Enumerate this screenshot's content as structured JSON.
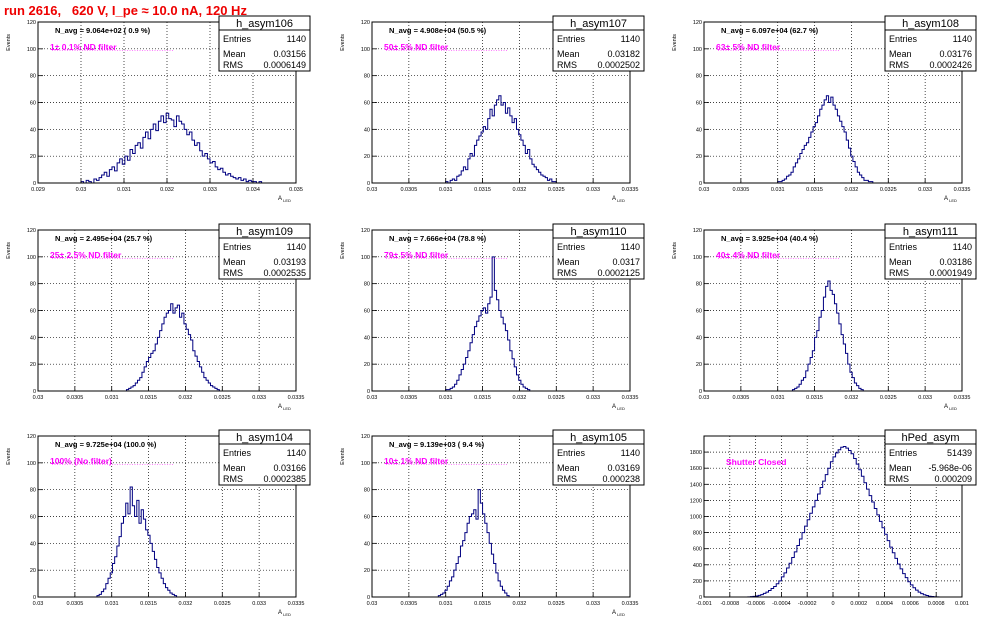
{
  "run_title": "run 2616,   620 V, I_pe ≈ 10.0 nA, 120 Hz",
  "stat_labels": {
    "entries": "Entries",
    "mean": "Mean",
    "rms": "RMS"
  },
  "colors": {
    "hist": "#000080",
    "annotation": "#ff00ff",
    "title": "#ee0000",
    "grid": "#000000"
  },
  "chart_data": [
    {
      "type": "bar",
      "name": "h_asym106",
      "ylabel": "Events",
      "xlabel": "A_LED",
      "xlim": [
        0.029,
        0.035
      ],
      "ylim": [
        0,
        120
      ],
      "xticks": [
        0.029,
        0.03,
        0.031,
        0.032,
        0.033,
        0.034,
        0.035
      ],
      "xtick_labels": [
        "0.029",
        "0.03",
        "0.031",
        "0.032",
        "0.033",
        "0.034",
        "0.035"
      ],
      "yticks": [
        0,
        20,
        40,
        60,
        80,
        100,
        120
      ],
      "navg": "N_avg = 9.064e+02 ( 0.9 %)",
      "filter": "1± 0.1% ND filter",
      "stats": {
        "entries": "1140",
        "mean": "0.03156",
        "rms": "0.0006149"
      },
      "grid": true,
      "hist": {
        "start": 0.03,
        "width": 6e-05,
        "counts": [
          1,
          0,
          2,
          1,
          0,
          3,
          2,
          4,
          6,
          8,
          5,
          10,
          12,
          9,
          15,
          18,
          14,
          20,
          17,
          25,
          22,
          28,
          30,
          26,
          34,
          38,
          33,
          40,
          44,
          39,
          46,
          50,
          45,
          52,
          48,
          47,
          42,
          50,
          46,
          44,
          40,
          36,
          38,
          32,
          28,
          30,
          24,
          20,
          22,
          18,
          15,
          16,
          12,
          10,
          11,
          8,
          6,
          7,
          5,
          4,
          3,
          4,
          2,
          3,
          1,
          2,
          1,
          1,
          0,
          1
        ]
      }
    },
    {
      "type": "bar",
      "name": "h_asym107",
      "ylabel": "Events",
      "xlabel": "A_LED",
      "xlim": [
        0.03,
        0.0335
      ],
      "ylim": [
        0,
        120
      ],
      "xticks": [
        0.03,
        0.0305,
        0.031,
        0.0315,
        0.032,
        0.0325,
        0.033,
        0.0335
      ],
      "xtick_labels": [
        "0.03",
        "0.0305",
        "0.031",
        "0.0315",
        "0.032",
        "0.0325",
        "0.033",
        "0.0335"
      ],
      "yticks": [
        0,
        20,
        40,
        60,
        80,
        100,
        120
      ],
      "navg": "N_avg = 4.908e+04 (50.5 %)",
      "filter": "50± 5% ND filter",
      "stats": {
        "entries": "1140",
        "mean": "0.03182",
        "rms": "0.0002502"
      },
      "grid": true,
      "hist": {
        "start": 0.031,
        "width": 3e-05,
        "counts": [
          1,
          0,
          2,
          3,
          2,
          5,
          6,
          9,
          12,
          10,
          18,
          22,
          20,
          28,
          32,
          35,
          38,
          42,
          40,
          48,
          55,
          50,
          58,
          62,
          65,
          58,
          60,
          52,
          56,
          50,
          45,
          48,
          40,
          36,
          32,
          28,
          22,
          25,
          18,
          14,
          12,
          10,
          8,
          6,
          5,
          4,
          2,
          3,
          1,
          1
        ]
      }
    },
    {
      "type": "bar",
      "name": "h_asym108",
      "ylabel": "Events",
      "xlabel": "A_LED",
      "xlim": [
        0.03,
        0.0335
      ],
      "ylim": [
        0,
        120
      ],
      "xticks": [
        0.03,
        0.0305,
        0.031,
        0.0315,
        0.032,
        0.0325,
        0.033,
        0.0335
      ],
      "xtick_labels": [
        "0.03",
        "0.0305",
        "0.031",
        "0.0315",
        "0.032",
        "0.0325",
        "0.033",
        "0.0335"
      ],
      "yticks": [
        0,
        20,
        40,
        60,
        80,
        100,
        120
      ],
      "navg": "N_avg = 6.097e+04 (62.7 %)",
      "filter": "63± 5% ND filter",
      "stats": {
        "entries": "1140",
        "mean": "0.03176",
        "rms": "0.0002426"
      },
      "grid": true,
      "hist": {
        "start": 0.031,
        "width": 3e-05,
        "counts": [
          1,
          1,
          2,
          3,
          5,
          6,
          8,
          12,
          15,
          18,
          22,
          25,
          28,
          30,
          34,
          38,
          42,
          45,
          50,
          55,
          58,
          62,
          65,
          60,
          64,
          58,
          55,
          50,
          46,
          42,
          38,
          32,
          26,
          20,
          16,
          12,
          8,
          6,
          4,
          2,
          2,
          1,
          1
        ]
      }
    },
    {
      "type": "bar",
      "name": "h_asym109",
      "ylabel": "Events",
      "xlabel": "A_LED",
      "xlim": [
        0.03,
        0.0335
      ],
      "ylim": [
        0,
        120
      ],
      "xticks": [
        0.03,
        0.0305,
        0.031,
        0.0315,
        0.032,
        0.0325,
        0.033,
        0.0335
      ],
      "xtick_labels": [
        "0.03",
        "0.0305",
        "0.031",
        "0.0315",
        "0.032",
        "0.0325",
        "0.033",
        "0.0335"
      ],
      "yticks": [
        0,
        20,
        40,
        60,
        80,
        100,
        120
      ],
      "navg": "N_avg = 2.495e+04 (25.7 %)",
      "filter": "25± 2.5% ND filter",
      "stats": {
        "entries": "1140",
        "mean": "0.03193",
        "rms": "0.0002535"
      },
      "grid": true,
      "hist": {
        "start": 0.0312,
        "width": 3e-05,
        "counts": [
          1,
          2,
          3,
          4,
          6,
          8,
          10,
          14,
          18,
          22,
          25,
          28,
          30,
          35,
          40,
          45,
          50,
          55,
          58,
          60,
          65,
          58,
          62,
          64,
          55,
          58,
          50,
          46,
          42,
          38,
          30,
          26,
          22,
          18,
          14,
          10,
          8,
          6,
          4,
          3,
          2,
          1
        ]
      }
    },
    {
      "type": "bar",
      "name": "h_asym110",
      "ylabel": "Events",
      "xlabel": "A_LED",
      "xlim": [
        0.03,
        0.0335
      ],
      "ylim": [
        0,
        120
      ],
      "xticks": [
        0.03,
        0.0305,
        0.031,
        0.0315,
        0.032,
        0.0325,
        0.033,
        0.0335
      ],
      "xtick_labels": [
        "0.03",
        "0.0305",
        "0.031",
        "0.0315",
        "0.032",
        "0.0325",
        "0.033",
        "0.0335"
      ],
      "yticks": [
        0,
        20,
        40,
        60,
        80,
        100,
        120
      ],
      "navg": "N_avg = 7.666e+04 (78.8 %)",
      "filter": "79± 5% ND filter",
      "stats": {
        "entries": "1140",
        "mean": "0.0317",
        "rms": "0.0002125"
      },
      "grid": true,
      "hist": {
        "start": 0.031,
        "width": 3e-05,
        "counts": [
          1,
          1,
          2,
          3,
          5,
          8,
          12,
          16,
          20,
          25,
          30,
          36,
          42,
          48,
          52,
          56,
          60,
          62,
          58,
          65,
          70,
          100,
          75,
          68,
          60,
          55,
          50,
          45,
          38,
          30,
          24,
          18,
          12,
          8,
          5,
          3,
          2,
          1
        ]
      }
    },
    {
      "type": "bar",
      "name": "h_asym111",
      "ylabel": "Events",
      "xlabel": "A_LED",
      "xlim": [
        0.03,
        0.0335
      ],
      "ylim": [
        0,
        120
      ],
      "xticks": [
        0.03,
        0.0305,
        0.031,
        0.0315,
        0.032,
        0.0325,
        0.033,
        0.0335
      ],
      "xtick_labels": [
        "0.03",
        "0.0305",
        "0.031",
        "0.0315",
        "0.032",
        "0.0325",
        "0.033",
        "0.0335"
      ],
      "yticks": [
        0,
        20,
        40,
        60,
        80,
        100,
        120
      ],
      "navg": "N_avg = 3.925e+04 (40.4 %)",
      "filter": "40± 4% ND filter",
      "stats": {
        "entries": "1140",
        "mean": "0.03186",
        "rms": "0.0001949"
      },
      "grid": true,
      "hist": {
        "start": 0.0312,
        "width": 3e-05,
        "counts": [
          1,
          2,
          3,
          5,
          8,
          10,
          15,
          20,
          25,
          30,
          40,
          45,
          55,
          60,
          70,
          78,
          82,
          75,
          72,
          65,
          58,
          50,
          42,
          35,
          28,
          20,
          14,
          10,
          6,
          4,
          2,
          1
        ]
      }
    },
    {
      "type": "bar",
      "name": "h_asym104",
      "ylabel": "Events",
      "xlabel": "A_LED",
      "xlim": [
        0.03,
        0.0335
      ],
      "ylim": [
        0,
        120
      ],
      "xticks": [
        0.03,
        0.0305,
        0.031,
        0.0315,
        0.032,
        0.0325,
        0.033,
        0.0335
      ],
      "xtick_labels": [
        "0.03",
        "0.0305",
        "0.031",
        "0.0315",
        "0.032",
        "0.0325",
        "0.033",
        "0.0335"
      ],
      "yticks": [
        0,
        20,
        40,
        60,
        80,
        100,
        120
      ],
      "navg": "N_avg = 9.725e+04 (100.0 %)",
      "filter": "100% (No filter)",
      "stats": {
        "entries": "1140",
        "mean": "0.03166",
        "rms": "0.0002385"
      },
      "grid": true,
      "hist": {
        "start": 0.0308,
        "width": 3e-05,
        "counts": [
          1,
          2,
          4,
          6,
          10,
          14,
          18,
          25,
          30,
          38,
          45,
          55,
          60,
          70,
          62,
          82,
          68,
          60,
          72,
          55,
          65,
          58,
          50,
          46,
          40,
          34,
          28,
          22,
          18,
          14,
          10,
          7,
          5,
          3,
          2,
          1
        ]
      }
    },
    {
      "type": "bar",
      "name": "h_asym105",
      "ylabel": "Events",
      "xlabel": "A_LED",
      "xlim": [
        0.03,
        0.0335
      ],
      "ylim": [
        0,
        120
      ],
      "xticks": [
        0.03,
        0.0305,
        0.031,
        0.0315,
        0.032,
        0.0325,
        0.033,
        0.0335
      ],
      "xtick_labels": [
        "0.03",
        "0.0305",
        "0.031",
        "0.0315",
        "0.032",
        "0.0325",
        "0.033",
        "0.0335"
      ],
      "yticks": [
        0,
        20,
        40,
        60,
        80,
        100,
        120
      ],
      "navg": "N_avg = 9.139e+03 ( 9.4 %)",
      "filter": "10± 1% ND filter",
      "stats": {
        "entries": "1140",
        "mean": "0.03169",
        "rms": "0.000238"
      },
      "grid": true,
      "hist": {
        "start": 0.0309,
        "width": 3e-05,
        "counts": [
          1,
          2,
          3,
          5,
          8,
          12,
          15,
          20,
          25,
          30,
          38,
          42,
          48,
          55,
          60,
          62,
          65,
          58,
          80,
          70,
          62,
          55,
          48,
          40,
          32,
          25,
          18,
          12,
          8,
          5,
          3,
          1
        ]
      }
    },
    {
      "type": "bar",
      "name": "hPed_asym",
      "ylabel": "",
      "xlabel": "",
      "xlim": [
        -0.001,
        0.001
      ],
      "ylim": [
        0,
        2000
      ],
      "xticks": [
        -0.001,
        -0.0008,
        -0.0006,
        -0.0004,
        -0.0002,
        0,
        0.0002,
        0.0004,
        0.0006,
        0.0008,
        0.001
      ],
      "xtick_labels": [
        "-0.001",
        "-0.0008",
        "-0.0006",
        "-0.0004",
        "-0.0002",
        "0",
        "0.0002",
        "0.0004",
        "0.0006",
        "0.0008",
        "0.001"
      ],
      "yticks": [
        0,
        200,
        400,
        600,
        800,
        1000,
        1200,
        1400,
        1600,
        1800
      ],
      "navg": "",
      "filter": "Shutter Closed",
      "stats": {
        "entries": "51439",
        "mean": "-5.968e-06",
        "rms": "0.000209"
      },
      "grid": true,
      "hist": {
        "start": -0.00066,
        "width": 2e-05,
        "counts": [
          2,
          4,
          8,
          12,
          20,
          30,
          45,
          60,
          80,
          105,
          130,
          165,
          200,
          250,
          300,
          360,
          420,
          490,
          560,
          640,
          720,
          800,
          880,
          960,
          1040,
          1120,
          1200,
          1280,
          1360,
          1440,
          1520,
          1600,
          1680,
          1740,
          1790,
          1830,
          1860,
          1870,
          1850,
          1820,
          1780,
          1720,
          1650,
          1580,
          1500,
          1420,
          1340,
          1260,
          1180,
          1100,
          1020,
          940,
          860,
          780,
          700,
          620,
          550,
          480,
          410,
          350,
          290,
          240,
          190,
          150,
          115,
          85,
          60,
          42,
          28,
          18,
          10,
          6,
          3,
          1
        ]
      }
    }
  ]
}
